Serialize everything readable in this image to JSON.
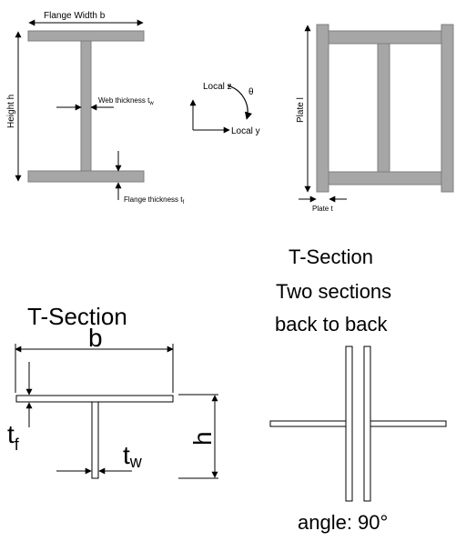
{
  "ibeam": {
    "flange_width": "Flange Width b",
    "height": "Height h",
    "web_thickness": "Web thickness t",
    "web_thickness_sub": "w",
    "flange_thickness": "Flange thickness t",
    "flange_thickness_sub": "f"
  },
  "axes": {
    "local_z": "Local z",
    "local_y": "Local y",
    "theta": "θ"
  },
  "plate": {
    "plate_l": "Plate l",
    "plate_t": "Plate t"
  },
  "tsection": {
    "title": "T-Section",
    "b": "b",
    "h": "h",
    "tf_main": "t",
    "tf_sub": "f",
    "tw_main": "t",
    "tw_sub": "w"
  },
  "back_to_back": {
    "title_line1": "T-Section",
    "title_line2": "Two sections",
    "title_line3": "back to back",
    "angle": "angle: 90°"
  },
  "colors": {
    "section_fill": "#a6a6a6",
    "section_stroke": "#7f7f7f",
    "line": "#000000"
  }
}
